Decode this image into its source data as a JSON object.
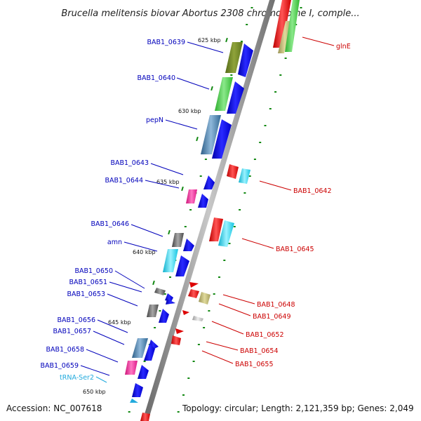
{
  "title": "Brucella melitensis biovar Abortus 2308 chromosome I, comple...",
  "footer": {
    "accession": "Accession: NC_007618",
    "topology": "Topology: circular; Length: 2,121,359 bp; Genes: 2,049"
  },
  "colors": {
    "forward_label": "#0000bb",
    "reverse_label": "#cc0000",
    "trna_label": "#22aadd",
    "backbone": "#888888",
    "tick": "#118811"
  },
  "scale": [
    "625 kbp",
    "630 kbp",
    "635 kbp",
    "640 kbp",
    "645 kbp",
    "650 kbp"
  ],
  "forward_genes": [
    "BAB1_0639",
    "BAB1_0640",
    "pepN",
    "BAB1_0643",
    "BAB1_0644",
    "BAB1_0646",
    "amn",
    "BAB1_0650",
    "BAB1_0651",
    "BAB1_0653",
    "BAB1_0656",
    "BAB1_0657",
    "BAB1_0658",
    "BAB1_0659",
    "tRNA-Ser2"
  ],
  "reverse_genes": [
    "glnE",
    "BAB1_0642",
    "BAB1_0645",
    "BAB1_0648",
    "BAB1_0649",
    "BAB1_0652",
    "BAB1_0654",
    "BAB1_0655"
  ]
}
